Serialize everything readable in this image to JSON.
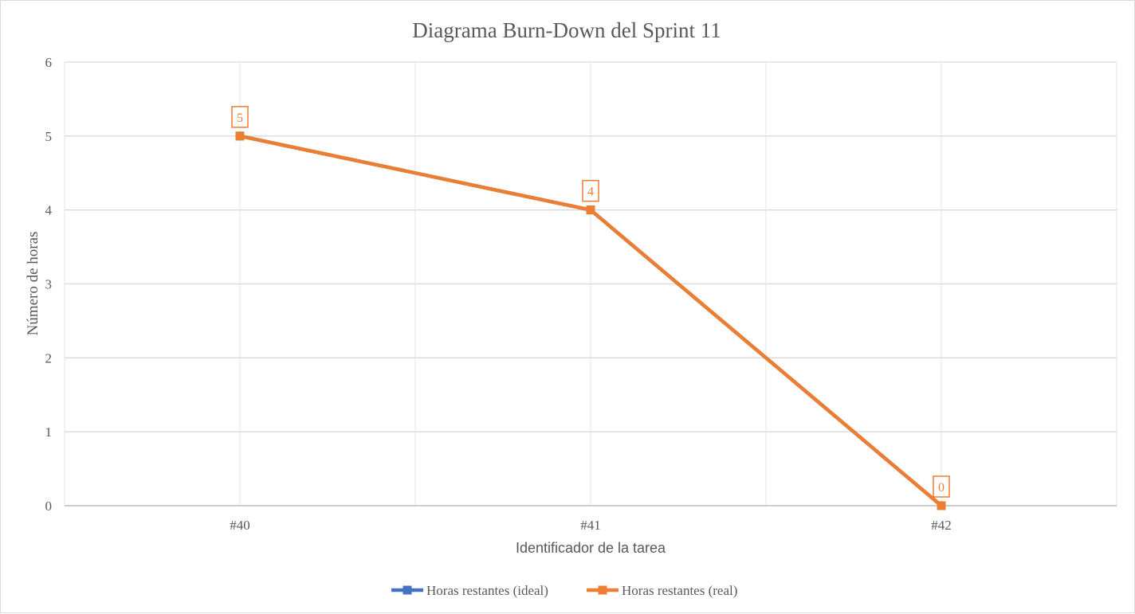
{
  "chart_data": {
    "type": "line",
    "title": "Diagrama  Burn-Down  del Sprint  11",
    "xlabel": "Identificador de la tarea",
    "ylabel": "Número de horas",
    "categories": [
      "#40",
      "#41",
      "#42"
    ],
    "ylim": [
      0,
      6
    ],
    "yticks": [
      "0",
      "1",
      "2",
      "3",
      "4",
      "5",
      "6"
    ],
    "grid": true,
    "legend_position": "bottom",
    "series": [
      {
        "name": "Horas restantes (ideal)",
        "values": [
          5,
          4,
          0
        ],
        "color": "#4472c4",
        "marker": "square",
        "data_labels": false
      },
      {
        "name": "Horas restantes (real)",
        "values": [
          5,
          4,
          0
        ],
        "color": "#ed7d31",
        "marker": "square",
        "data_labels": true
      }
    ],
    "colors": {
      "gridline": "#d9d9d9",
      "text": "#595959",
      "title": "#595959"
    }
  }
}
